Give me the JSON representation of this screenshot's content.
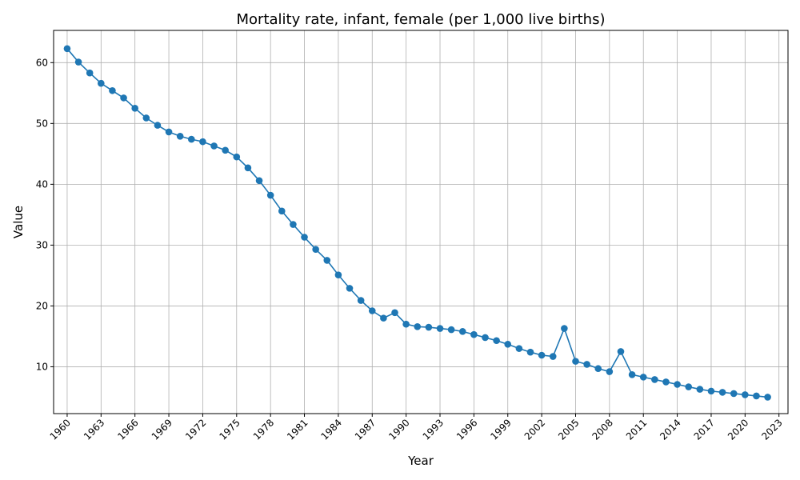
{
  "chart_data": {
    "type": "line",
    "title": "Mortality rate, infant, female (per 1,000 live births)",
    "xlabel": "Year",
    "ylabel": "Value",
    "xlim": [
      1958.8,
      2023.8
    ],
    "ylim": [
      2.3,
      65.3
    ],
    "x_ticks": [
      1960,
      1963,
      1966,
      1969,
      1972,
      1975,
      1978,
      1981,
      1984,
      1987,
      1990,
      1993,
      1996,
      1999,
      2002,
      2005,
      2008,
      2011,
      2014,
      2017,
      2020,
      2023
    ],
    "y_ticks": [
      10,
      20,
      30,
      40,
      50,
      60
    ],
    "grid": true,
    "color": "#1f77b4",
    "marker": "circle",
    "x": [
      1960,
      1961,
      1962,
      1963,
      1964,
      1965,
      1966,
      1967,
      1968,
      1969,
      1970,
      1971,
      1972,
      1973,
      1974,
      1975,
      1976,
      1977,
      1978,
      1979,
      1980,
      1981,
      1982,
      1983,
      1984,
      1985,
      1986,
      1987,
      1988,
      1989,
      1990,
      1991,
      1992,
      1993,
      1994,
      1995,
      1996,
      1997,
      1998,
      1999,
      2000,
      2001,
      2002,
      2003,
      2004,
      2005,
      2006,
      2007,
      2008,
      2009,
      2010,
      2011,
      2012,
      2013,
      2014,
      2015,
      2016,
      2017,
      2018,
      2019,
      2020,
      2021,
      2022
    ],
    "y": [
      62.3,
      60.1,
      58.3,
      56.6,
      55.4,
      54.2,
      52.5,
      50.9,
      49.7,
      48.6,
      47.9,
      47.4,
      47.0,
      46.3,
      45.6,
      44.5,
      42.7,
      40.6,
      38.2,
      35.6,
      33.4,
      31.3,
      29.3,
      27.5,
      25.1,
      22.9,
      20.9,
      19.2,
      18.0,
      18.9,
      17.0,
      16.6,
      16.5,
      16.3,
      16.1,
      15.8,
      15.3,
      14.8,
      14.3,
      13.7,
      13.0,
      12.4,
      11.9,
      11.7,
      16.3,
      10.9,
      10.4,
      9.7,
      9.2,
      12.5,
      8.7,
      8.3,
      7.9,
      7.5,
      7.1,
      6.7,
      6.3,
      6.0,
      5.8,
      5.6,
      5.4,
      5.2,
      5.0
    ]
  }
}
